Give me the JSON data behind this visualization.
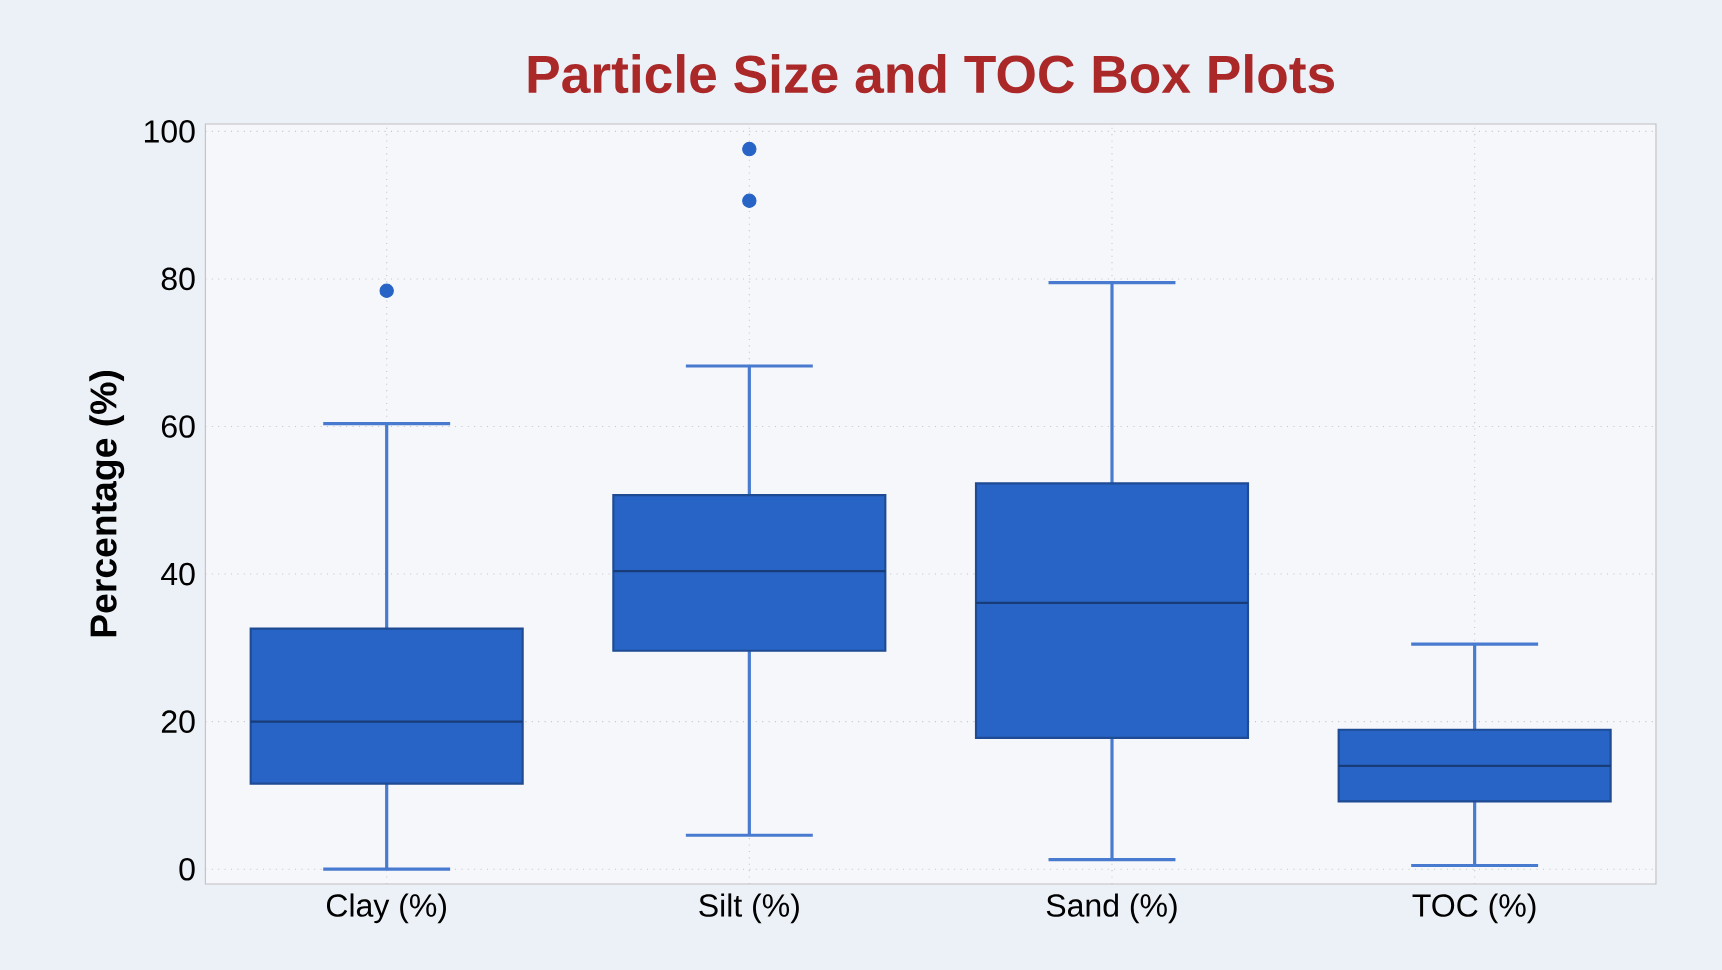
{
  "chart_data": {
    "type": "box",
    "title": "Particle Size and TOC Box Plots",
    "ylabel": "Percentage (%)",
    "categories": [
      "Clay (%)",
      "Silt (%)",
      "Sand (%)",
      "TOC (%)"
    ],
    "boxes": [
      {
        "low": 0,
        "q1": 11.6,
        "median": 20,
        "q3": 32.6,
        "high": 60.4,
        "outliers": [
          78.4
        ]
      },
      {
        "low": 4.6,
        "q1": 29.6,
        "median": 40.4,
        "q3": 50.7,
        "high": 68.2,
        "outliers": [
          90.6,
          97.6
        ]
      },
      {
        "low": 1.3,
        "q1": 17.8,
        "median": 36.1,
        "q3": 52.3,
        "high": 79.5
      },
      {
        "low": 0.5,
        "q1": 9.2,
        "median": 14,
        "q3": 18.9,
        "high": 30.5
      }
    ],
    "color": "#2864c6",
    "ylim": [
      -2,
      101
    ],
    "yticks": [
      0,
      20,
      40,
      60,
      80,
      100
    ],
    "grid": true,
    "marker": "circle"
  }
}
